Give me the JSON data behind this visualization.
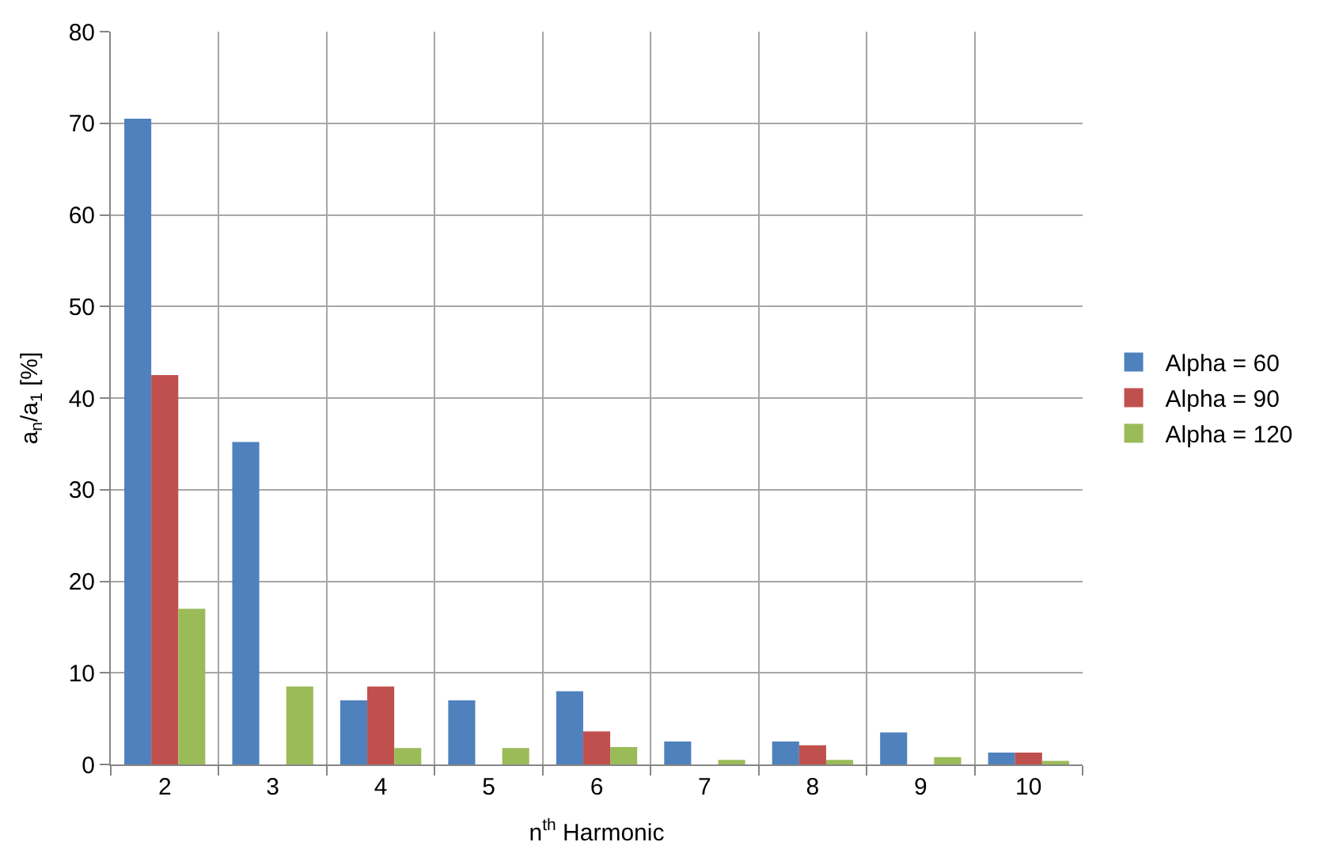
{
  "chart_data": {
    "type": "bar",
    "xlabel": "n$^{th}$ Harmonic",
    "ylabel": "a$_{n}$/a$_{1}$ [%]",
    "categories": [
      "2",
      "3",
      "4",
      "5",
      "6",
      "7",
      "8",
      "9",
      "10"
    ],
    "series": [
      {
        "name": "Alpha = 60",
        "color": "#4f81bd",
        "values": [
          70.5,
          35.2,
          7.0,
          7.0,
          8.0,
          2.5,
          2.5,
          3.5,
          1.3
        ]
      },
      {
        "name": "Alpha = 90",
        "color": "#c0504d",
        "values": [
          42.5,
          0,
          8.5,
          0,
          3.6,
          0,
          2.1,
          0,
          1.3
        ]
      },
      {
        "name": "Alpha = 120",
        "color": "#9bbb59",
        "values": [
          17.0,
          8.5,
          1.8,
          1.8,
          1.9,
          0.5,
          0.5,
          0.8,
          0.4
        ]
      }
    ],
    "ylim": [
      0,
      80
    ],
    "yticks": [
      0,
      10,
      20,
      30,
      40,
      50,
      60,
      70,
      80
    ],
    "grid": true,
    "legend": "right"
  }
}
